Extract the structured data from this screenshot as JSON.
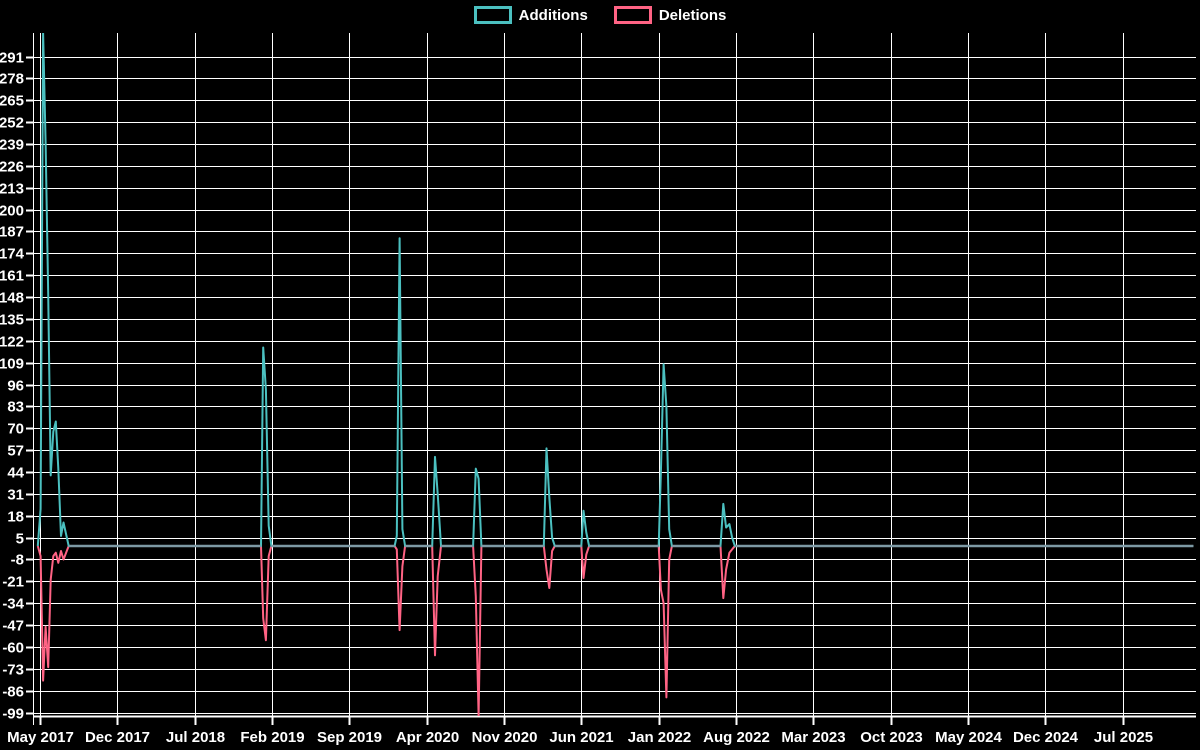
{
  "legend": {
    "items": [
      {
        "label": "Additions",
        "color": "#4bc0c0"
      },
      {
        "label": "Deletions",
        "color": "#ff6384"
      }
    ]
  },
  "chart_data": {
    "type": "line",
    "title": "",
    "xlabel": "",
    "ylabel": "",
    "background_color": "#000000",
    "grid_color": "#ffffff",
    "text_color": "#ffffff",
    "zero_overlap_line_color": "#7d99a4",
    "legend_position": "top-center",
    "x_axis": {
      "unit": "months since May 2017",
      "tick_interval_months": 7,
      "labels": [
        "May 2017",
        "Dec 2017",
        "Jul 2018",
        "Feb 2019",
        "Sep 2019",
        "Apr 2020",
        "Nov 2020",
        "Jun 2021",
        "Jan 2022",
        "Aug 2022",
        "Mar 2023",
        "Oct 2023",
        "May 2024",
        "Dec 2024",
        "Jul 2025"
      ]
    },
    "y_axis": {
      "min": -99,
      "max": 291,
      "step": 13,
      "ticks": [
        291,
        278,
        265,
        252,
        239,
        226,
        213,
        200,
        187,
        174,
        161,
        148,
        135,
        122,
        109,
        96,
        83,
        70,
        57,
        44,
        31,
        18,
        5,
        -8,
        -21,
        -34,
        -47,
        -60,
        -73,
        -86,
        -99
      ]
    },
    "series": [
      {
        "name": "Additions",
        "color": "#4bc0c0"
      },
      {
        "name": "Deletions",
        "color": "#ff6384"
      }
    ],
    "points_format": [
      "months_since_may_2017",
      "additions",
      "deletions"
    ],
    "points": [
      [
        -0.2,
        0,
        0
      ],
      [
        0.05,
        22,
        -6
      ],
      [
        0.28,
        305,
        -80
      ],
      [
        0.51,
        240,
        -48
      ],
      [
        0.74,
        150,
        -72
      ],
      [
        0.97,
        42,
        -20
      ],
      [
        1.2,
        68,
        -6
      ],
      [
        1.43,
        74,
        -4
      ],
      [
        1.66,
        46,
        -10
      ],
      [
        1.9,
        6,
        -3
      ],
      [
        2.13,
        14,
        -8
      ],
      [
        2.6,
        0,
        0
      ],
      [
        20.0,
        0,
        0
      ],
      [
        20.2,
        118,
        -43
      ],
      [
        20.45,
        93,
        -56
      ],
      [
        20.7,
        12,
        -6
      ],
      [
        20.95,
        0,
        0
      ],
      [
        32.1,
        0,
        0
      ],
      [
        32.3,
        6,
        -2
      ],
      [
        32.55,
        183,
        -50
      ],
      [
        32.8,
        10,
        -12
      ],
      [
        33.05,
        0,
        0
      ],
      [
        35.5,
        0,
        0
      ],
      [
        35.75,
        53,
        -65
      ],
      [
        36.0,
        31,
        -18
      ],
      [
        36.3,
        0,
        0
      ],
      [
        39.2,
        0,
        0
      ],
      [
        39.45,
        46,
        -30
      ],
      [
        39.7,
        40,
        -101
      ],
      [
        39.95,
        0,
        0
      ],
      [
        45.6,
        0,
        0
      ],
      [
        45.85,
        58,
        -14
      ],
      [
        46.1,
        29,
        -25
      ],
      [
        46.35,
        5,
        -3
      ],
      [
        46.6,
        0,
        0
      ],
      [
        49.0,
        0,
        0
      ],
      [
        49.2,
        21,
        -19
      ],
      [
        49.45,
        8,
        -5
      ],
      [
        49.7,
        0,
        0
      ],
      [
        56.0,
        0,
        0
      ],
      [
        56.2,
        44,
        -26
      ],
      [
        56.45,
        108,
        -34
      ],
      [
        56.7,
        83,
        -90
      ],
      [
        56.95,
        10,
        -8
      ],
      [
        57.2,
        0,
        0
      ],
      [
        61.6,
        0,
        0
      ],
      [
        61.85,
        25,
        -31
      ],
      [
        62.1,
        11,
        -14
      ],
      [
        62.4,
        13,
        -4
      ],
      [
        62.65,
        5,
        -2
      ],
      [
        62.9,
        0,
        0
      ],
      [
        104.4,
        0,
        0
      ]
    ]
  }
}
